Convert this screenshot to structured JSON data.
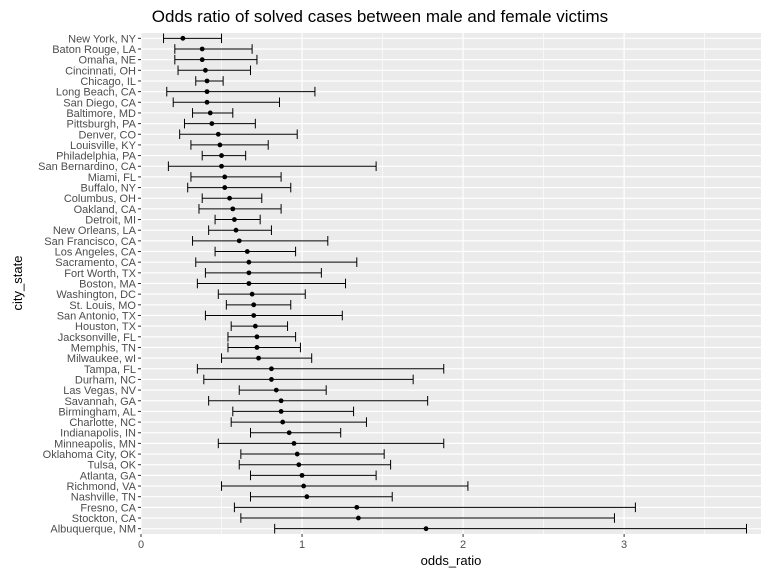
{
  "chart_data": {
    "type": "errorbar",
    "title": "Odds ratio of solved cases between male and female victims",
    "xlabel": "odds_ratio",
    "ylabel": "city_state",
    "xlim": [
      0,
      3.85
    ],
    "xticks": [
      0,
      1,
      2,
      3
    ],
    "grid": true,
    "colors": {
      "panel": "#ebebeb",
      "grid": "#ffffff",
      "marks": "#000000"
    },
    "categories": [
      "New York, NY",
      "Baton Rouge, LA",
      "Omaha, NE",
      "Cincinnati, OH",
      "Chicago, IL",
      "Long Beach, CA",
      "San Diego, CA",
      "Baltimore, MD",
      "Pittsburgh, PA",
      "Denver, CO",
      "Louisville, KY",
      "Philadelphia, PA",
      "San Bernardino, CA",
      "Miami, FL",
      "Buffalo, NY",
      "Columbus, OH",
      "Oakland, CA",
      "Detroit, MI",
      "New Orleans, LA",
      "San Francisco, CA",
      "Los Angeles, CA",
      "Sacramento, CA",
      "Fort Worth, TX",
      "Boston, MA",
      "Washington, DC",
      "St. Louis, MO",
      "San Antonio, TX",
      "Houston, TX",
      "Jacksonville, FL",
      "Memphis, TN",
      "Milwaukee, wI",
      "Tampa, FL",
      "Durham, NC",
      "Las Vegas, NV",
      "Savannah, GA",
      "Birmingham, AL",
      "Charlotte, NC",
      "Indianapolis, IN",
      "Minneapolis, MN",
      "Oklahoma City, OK",
      "Tulsa, OK",
      "Atlanta, GA",
      "Richmond, VA",
      "Nashville, TN",
      "Fresno, CA",
      "Stockton, CA",
      "Albuquerque, NM"
    ],
    "values": [
      0.26,
      0.38,
      0.38,
      0.4,
      0.41,
      0.41,
      0.41,
      0.43,
      0.44,
      0.48,
      0.49,
      0.5,
      0.5,
      0.52,
      0.52,
      0.55,
      0.57,
      0.58,
      0.59,
      0.61,
      0.66,
      0.67,
      0.67,
      0.67,
      0.69,
      0.7,
      0.7,
      0.71,
      0.72,
      0.72,
      0.73,
      0.81,
      0.81,
      0.84,
      0.87,
      0.87,
      0.88,
      0.92,
      0.95,
      0.97,
      0.98,
      1.0,
      1.01,
      1.03,
      1.34,
      1.35,
      1.77
    ],
    "lower": [
      0.14,
      0.21,
      0.21,
      0.23,
      0.34,
      0.16,
      0.2,
      0.32,
      0.27,
      0.24,
      0.31,
      0.38,
      0.17,
      0.31,
      0.29,
      0.38,
      0.36,
      0.46,
      0.42,
      0.32,
      0.46,
      0.34,
      0.4,
      0.35,
      0.48,
      0.53,
      0.4,
      0.56,
      0.54,
      0.54,
      0.5,
      0.35,
      0.39,
      0.61,
      0.42,
      0.57,
      0.56,
      0.68,
      0.48,
      0.62,
      0.61,
      0.68,
      0.5,
      0.68,
      0.58,
      0.62,
      0.83
    ],
    "upper": [
      0.5,
      0.69,
      0.72,
      0.68,
      0.51,
      1.08,
      0.86,
      0.57,
      0.71,
      0.97,
      0.79,
      0.65,
      1.46,
      0.87,
      0.93,
      0.75,
      0.87,
      0.74,
      0.81,
      1.16,
      0.96,
      1.34,
      1.12,
      1.27,
      1.02,
      0.93,
      1.25,
      0.91,
      0.96,
      0.99,
      1.06,
      1.88,
      1.69,
      1.15,
      1.78,
      1.32,
      1.4,
      1.24,
      1.88,
      1.51,
      1.55,
      1.46,
      2.03,
      1.56,
      3.07,
      2.94,
      3.76
    ]
  }
}
